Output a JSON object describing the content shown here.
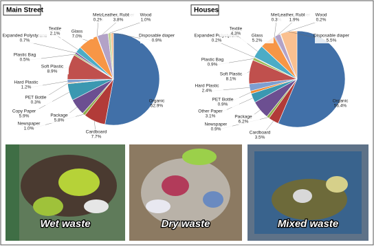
{
  "chart_data": [
    {
      "type": "pie",
      "title": "Main Street",
      "categories": [
        "Organic",
        "Cardboard",
        "Newspaper",
        "Package",
        "Copy Paper",
        "PET Bottle",
        "Hard Plastic",
        "Soft Plastic",
        "Plastic Bag",
        "Expanded Polystyrene",
        "Textile",
        "Glass",
        "Metal",
        "Leather, Rubber",
        "Wood",
        "Disposable diaper"
      ],
      "values": [
        52.9,
        7.7,
        1.0,
        5.8,
        5.9,
        0.3,
        1.2,
        8.9,
        0.5,
        0.7,
        2.1,
        7.0,
        0.2,
        3.8,
        1.0,
        0.9
      ],
      "value_labels": [
        "52.9%",
        "7.7%",
        "1.0%",
        "5.8%",
        "5.9%",
        "0.3%",
        "1.2%",
        "8.9%",
        "0.5%",
        "0.7%",
        "2.1%",
        "7.0%",
        "0.2%",
        "3.8%",
        "1.0%",
        "0.9%"
      ],
      "colors": [
        "#4170a8",
        "#b23b38",
        "#8fae4c",
        "#6c4f91",
        "#3b98b1",
        "#f08a2f",
        "#7e9fd0",
        "#c0504d",
        "#9bbb59",
        "#8064a2",
        "#4bacc6",
        "#f79646",
        "#5b86c5",
        "#b3a2c7",
        "#c3d69b",
        "#fac090"
      ]
    },
    {
      "type": "pie",
      "title": "Houses",
      "categories": [
        "Organic",
        "Cardboard",
        "Newspaper",
        "Package",
        "Other Paper",
        "PET Bottle",
        "Hard Plastic",
        "Soft Plastic",
        "Plastic Bag",
        "Expanded Polystyrene",
        "Textile",
        "Glass",
        "Metal",
        "Leather, Rubber",
        "Wood",
        "Disposable diaper"
      ],
      "values": [
        56.4,
        3.5,
        0.9,
        6.2,
        3.1,
        0.9,
        2.4,
        8.1,
        0.9,
        0.2,
        4.3,
        5.2,
        0.3,
        1.9,
        0.2,
        5.5
      ],
      "value_labels": [
        "56.4%",
        "3.5%",
        "0.9%",
        "6.2%",
        "3.1%",
        "0.9%",
        "2.4%",
        "8.1%",
        "0.9%",
        "0.2%",
        "4.3%",
        "5.2%",
        "0.3%",
        "1.9%",
        "0.2%",
        "5.5%"
      ],
      "colors": [
        "#4170a8",
        "#b23b38",
        "#8fae4c",
        "#6c4f91",
        "#3b98b1",
        "#f08a2f",
        "#7e9fd0",
        "#c0504d",
        "#9bbb59",
        "#8064a2",
        "#4bacc6",
        "#f79646",
        "#5b86c5",
        "#b3a2c7",
        "#c3d69b",
        "#fac090"
      ]
    }
  ],
  "photos": [
    {
      "caption": "Wet waste"
    },
    {
      "caption": "Dry waste"
    },
    {
      "caption": "Mixed waste"
    }
  ]
}
